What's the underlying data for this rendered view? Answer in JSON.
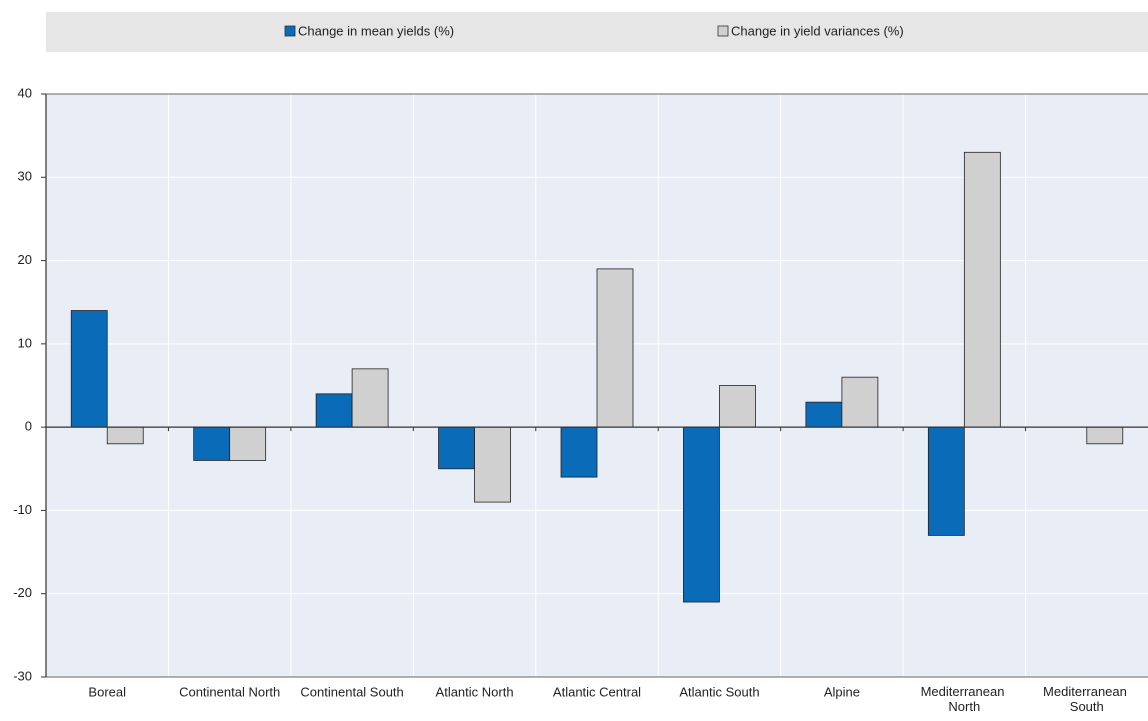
{
  "chart_data": {
    "type": "bar",
    "categories": [
      "Boreal",
      "Continental North",
      "Continental South",
      "Atlantic North",
      "Atlantic Central",
      "Atlantic South",
      "Alpine",
      "Mediterranean North",
      "Mediterranean South"
    ],
    "series": [
      {
        "name": "Change in mean yields (%)",
        "color": "#0a6bb8",
        "values": [
          14,
          -4,
          4,
          -5,
          -6,
          -21,
          3,
          -13,
          0
        ]
      },
      {
        "name": "Change in yield variances (%)",
        "color": "#d0d0d0",
        "values": [
          -2,
          -4,
          7,
          -9,
          19,
          5,
          6,
          33,
          -2
        ]
      }
    ],
    "ylim": [
      -30,
      40
    ],
    "yticks": [
      -30,
      -20,
      -10,
      0,
      10,
      20,
      30,
      40
    ],
    "grid": true,
    "legend": "top"
  }
}
